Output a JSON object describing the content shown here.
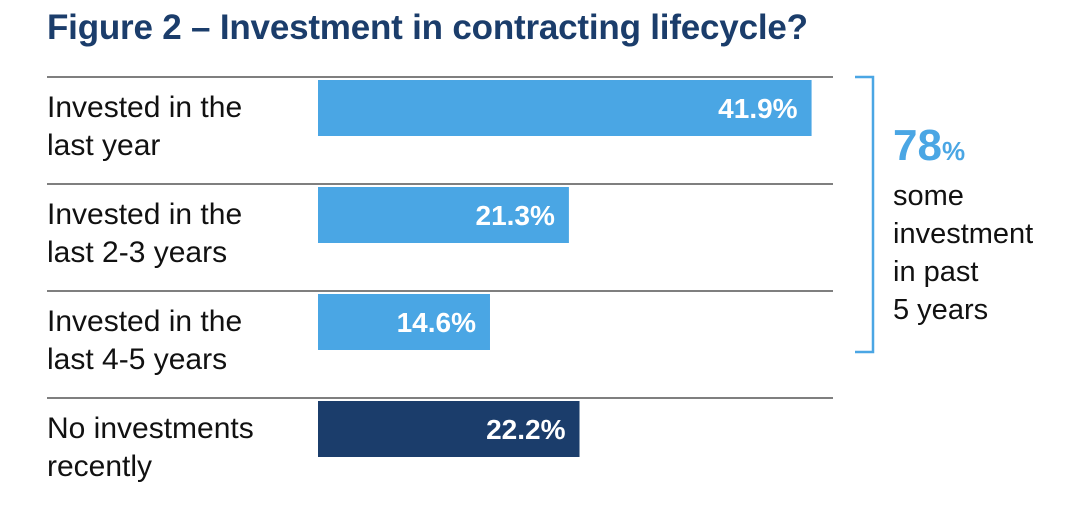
{
  "title": "Figure 2 – Investment in contracting lifecycle?",
  "chart_data": {
    "type": "bar",
    "orientation": "horizontal",
    "title": "Figure 2 – Investment in contracting lifecycle?",
    "categories": [
      [
        "Invested in the",
        "last year"
      ],
      [
        "Invested in the",
        "last 2-3 years"
      ],
      [
        "Invested in the",
        "last 4-5 years"
      ],
      [
        "No investments",
        "recently"
      ]
    ],
    "values": [
      41.9,
      21.3,
      14.6,
      22.2
    ],
    "value_labels": [
      "41.9%",
      "21.3%",
      "14.6%",
      "22.2%"
    ],
    "colors": [
      "#4aa6e4",
      "#4aa6e4",
      "#4aa6e4",
      "#1b3d6b"
    ],
    "xlim": [
      0,
      100
    ],
    "xlabel": "",
    "ylabel": ""
  },
  "summary": {
    "value": "78",
    "unit": "%",
    "lines": [
      "some",
      "investment",
      "in past",
      "5 years"
    ],
    "bracket_color": "#4aa6e4"
  }
}
